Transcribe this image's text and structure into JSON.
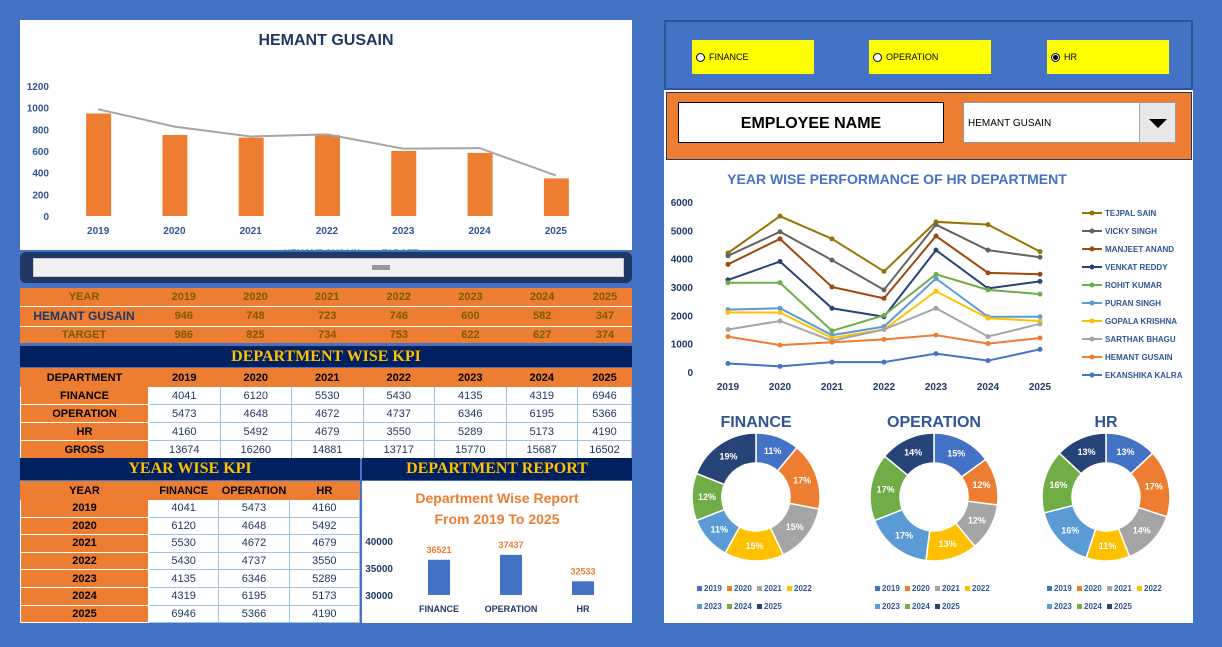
{
  "top_chart": {
    "title": "HEMANT GUSAIN",
    "type": "bar",
    "categories": [
      "2019",
      "2020",
      "2021",
      "2022",
      "2023",
      "2024",
      "2025"
    ],
    "series": [
      {
        "name": "HEMANT GUSAIN",
        "values": [
          946,
          748,
          723,
          746,
          600,
          582,
          347
        ],
        "color": "#ED7D31"
      },
      {
        "name": "TARGET",
        "values": [
          986,
          825,
          734,
          753,
          622,
          627,
          374
        ],
        "color": "#A5A5A5"
      }
    ],
    "yticks": [
      "0",
      "200",
      "400",
      "600",
      "800",
      "1000",
      "1200"
    ],
    "ylim": [
      0,
      1200
    ]
  },
  "summary_table": {
    "header": [
      "YEAR",
      "2019",
      "2020",
      "2021",
      "2022",
      "2023",
      "2024",
      "2025"
    ],
    "actual": [
      "HEMANT GUSAIN",
      "946",
      "748",
      "723",
      "746",
      "600",
      "582",
      "347"
    ],
    "target": [
      "TARGET",
      "986",
      "825",
      "734",
      "753",
      "622",
      "627",
      "374"
    ]
  },
  "dept_kpi": {
    "title": "DEPARTMENT WISE KPI",
    "header": [
      "DEPARTMENT",
      "2019",
      "2020",
      "2021",
      "2022",
      "2023",
      "2024",
      "2025"
    ],
    "rows": [
      [
        "FINANCE",
        "4041",
        "6120",
        "5530",
        "5430",
        "4135",
        "4319",
        "6946"
      ],
      [
        "OPERATION",
        "5473",
        "4648",
        "4672",
        "4737",
        "6346",
        "6195",
        "5366"
      ],
      [
        "HR",
        "4160",
        "5492",
        "4679",
        "3550",
        "5289",
        "5173",
        "4190"
      ],
      [
        "GROSS",
        "13674",
        "16260",
        "14881",
        "13717",
        "15770",
        "15687",
        "16502"
      ]
    ]
  },
  "year_kpi": {
    "title": "YEAR WISE KPI",
    "header": [
      "YEAR",
      "FINANCE",
      "OPERATION",
      "HR"
    ],
    "rows": [
      [
        "2019",
        "4041",
        "5473",
        "4160"
      ],
      [
        "2020",
        "6120",
        "4648",
        "5492"
      ],
      [
        "2021",
        "5530",
        "4672",
        "4679"
      ],
      [
        "2022",
        "5430",
        "4737",
        "3550"
      ],
      [
        "2023",
        "4135",
        "6346",
        "5289"
      ],
      [
        "2024",
        "4319",
        "6195",
        "5173"
      ],
      [
        "2025",
        "6946",
        "5366",
        "4190"
      ]
    ]
  },
  "dept_report": {
    "title": "DEPARTMENT REPORT",
    "chart_title_1": "Department Wise Report",
    "chart_title_2": "From 2019 To 2025",
    "type": "bar",
    "categories": [
      "FINANCE",
      "OPERATION",
      "HR"
    ],
    "values": [
      36521,
      37437,
      32533
    ],
    "labels": [
      "36521",
      "37437",
      "32533"
    ],
    "yticks": [
      "30000",
      "35000",
      "40000"
    ],
    "ylim": [
      30000,
      40000
    ]
  },
  "radios": [
    {
      "label": "FINANCE",
      "selected": false
    },
    {
      "label": "OPERATION",
      "selected": false
    },
    {
      "label": "HR",
      "selected": true
    }
  ],
  "employee": {
    "label": "EMPLOYEE NAME",
    "selected": "HEMANT GUSAIN"
  },
  "line_chart": {
    "title": "YEAR WISE PERFORMANCE OF HR DEPARTMENT",
    "type": "line",
    "x": [
      "2019",
      "2020",
      "2021",
      "2022",
      "2023",
      "2024",
      "2025"
    ],
    "yticks": [
      "0",
      "1000",
      "2000",
      "3000",
      "4000",
      "5000",
      "6000"
    ],
    "ylim": [
      0,
      6000
    ],
    "series": [
      {
        "name": "TEJPAL SAIN",
        "color": "#997300",
        "values": [
          4200,
          5500,
          4700,
          3550,
          5300,
          5200,
          4250
        ]
      },
      {
        "name": "VICKY SINGH",
        "color": "#636363",
        "values": [
          4100,
          4950,
          3950,
          2900,
          5200,
          4300,
          4050
        ]
      },
      {
        "name": "MANJEET ANAND",
        "color": "#9E480E",
        "values": [
          3800,
          4700,
          3000,
          2600,
          4800,
          3500,
          3450
        ]
      },
      {
        "name": "VENKAT REDDY",
        "color": "#264478",
        "values": [
          3250,
          3900,
          2250,
          1950,
          4300,
          2950,
          3200
        ]
      },
      {
        "name": "ROHIT KUMAR",
        "color": "#70AD47",
        "values": [
          3150,
          3150,
          1450,
          2000,
          3450,
          2900,
          2750
        ]
      },
      {
        "name": "PURAN SINGH",
        "color": "#5B9BD5",
        "values": [
          2200,
          2250,
          1300,
          1600,
          3300,
          1950,
          1950
        ]
      },
      {
        "name": "GOPALA KRISHNA",
        "color": "#FFC000",
        "values": [
          2100,
          2100,
          1200,
          1500,
          2850,
          1900,
          1800
        ]
      },
      {
        "name": "SARTHAK BHAGU",
        "color": "#A5A5A5",
        "values": [
          1500,
          1800,
          1100,
          1500,
          2250,
          1250,
          1700
        ]
      },
      {
        "name": "HEMANT GUSAIN",
        "color": "#ED7D31",
        "values": [
          1250,
          950,
          1050,
          1150,
          1300,
          1000,
          1200
        ]
      },
      {
        "name": "EKANSHIKA KALRA",
        "color": "#4472C4",
        "values": [
          300,
          200,
          350,
          350,
          650,
          400,
          800
        ]
      }
    ]
  },
  "donuts": [
    {
      "title": "FINANCE",
      "type": "pie",
      "values": [
        11,
        17,
        15,
        15,
        11,
        12,
        19
      ],
      "labels": [
        "11%",
        "17%",
        "15%",
        "15%",
        "11%",
        "12%",
        "19%"
      ]
    },
    {
      "title": "OPERATION",
      "type": "pie",
      "values": [
        15,
        12,
        12,
        13,
        17,
        17,
        14
      ],
      "labels": [
        "15%",
        "12%",
        "12%",
        "13%",
        "17%",
        "17%",
        "14%"
      ]
    },
    {
      "title": "HR",
      "type": "pie",
      "values": [
        13,
        17,
        14,
        11,
        16,
        16,
        13
      ],
      "labels": [
        "13%",
        "17%",
        "14%",
        "11%",
        "16%",
        "16%",
        "13%"
      ]
    }
  ],
  "donut_legend": [
    "2019",
    "2020",
    "2021",
    "2022",
    "2023",
    "2024",
    "2025"
  ],
  "donut_colors": [
    "#4472C4",
    "#ED7D31",
    "#A5A5A5",
    "#FFC000",
    "#5B9BD5",
    "#70AD47",
    "#264478"
  ]
}
